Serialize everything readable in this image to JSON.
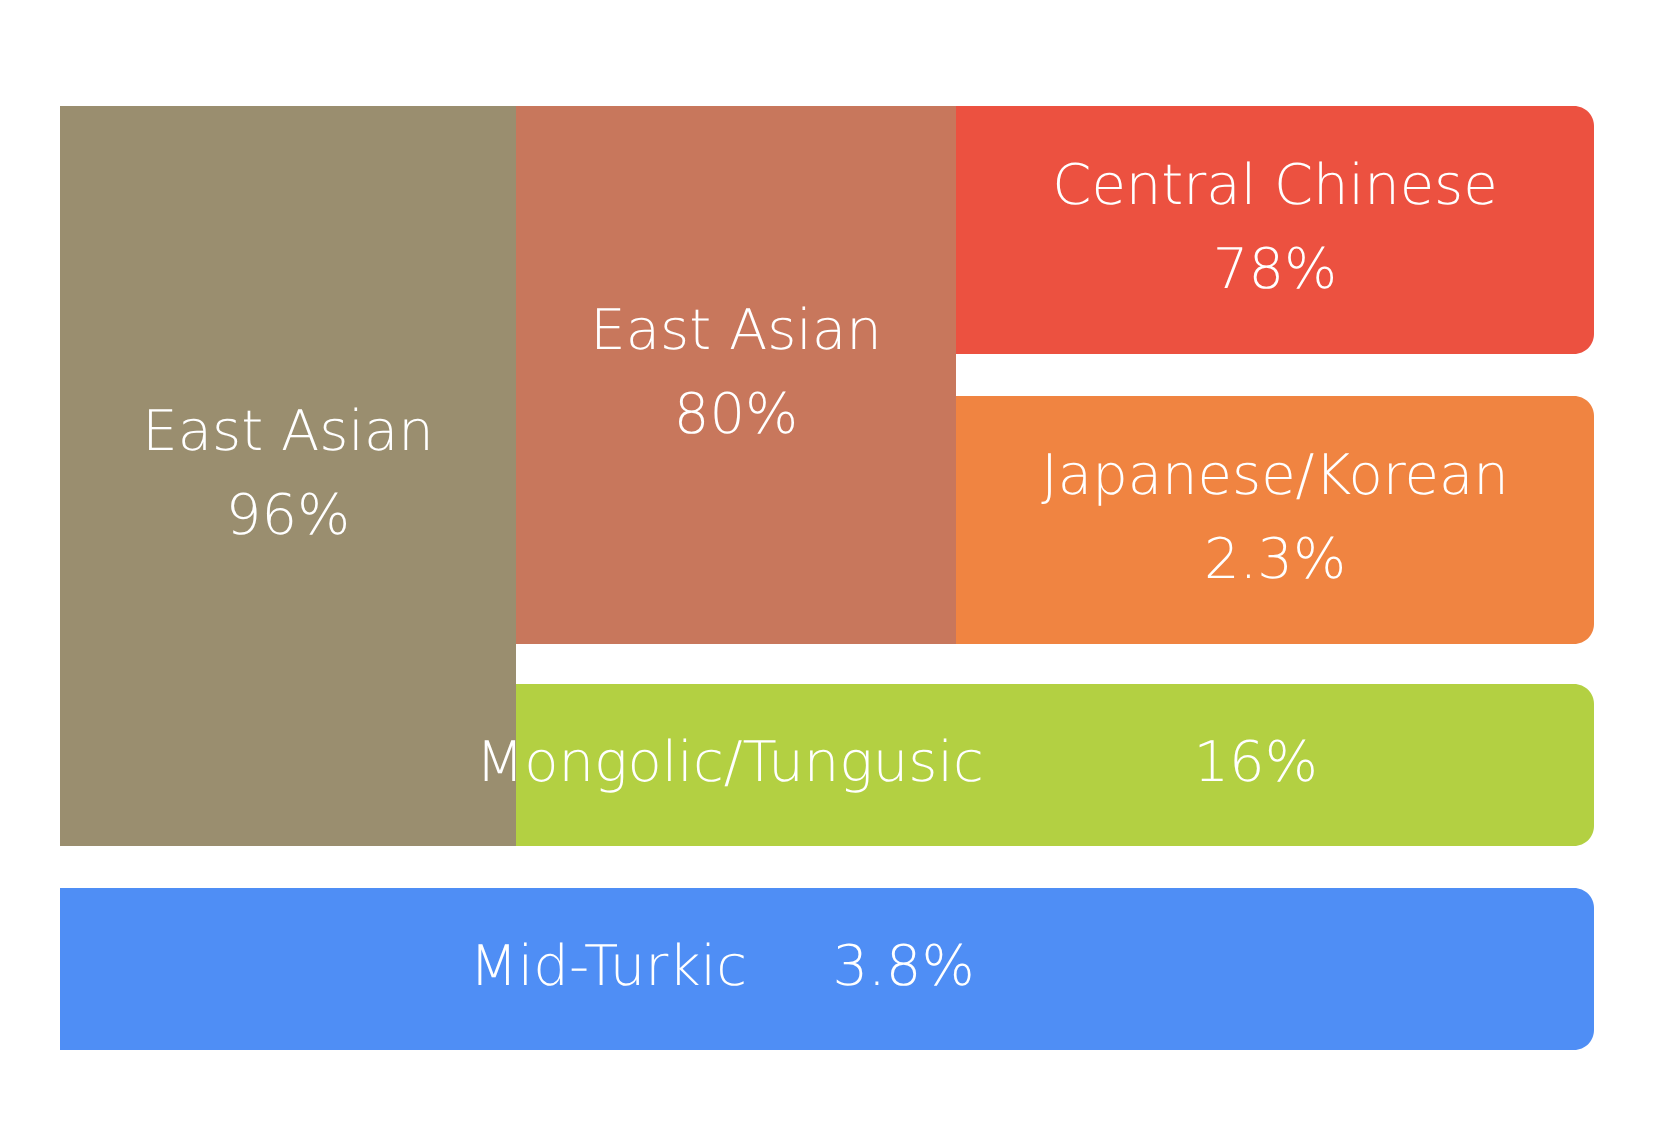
{
  "chart_data": {
    "type": "other",
    "categories": [
      "East Asian",
      "East Asian",
      "Central Chinese",
      "Japanese/Korean",
      "Mongolic/Tungusic",
      "Mid-Turkic"
    ],
    "values": [
      96,
      80,
      78,
      2.3,
      16,
      3.8
    ],
    "value_labels": [
      "96%",
      "80%",
      "78%",
      "2.3%",
      "16%",
      "3.8%"
    ],
    "colors": [
      "#9a8e6f",
      "#c8775c",
      "#ec5140",
      "#f08441",
      "#b3d042",
      "#4f8ef5"
    ]
  }
}
